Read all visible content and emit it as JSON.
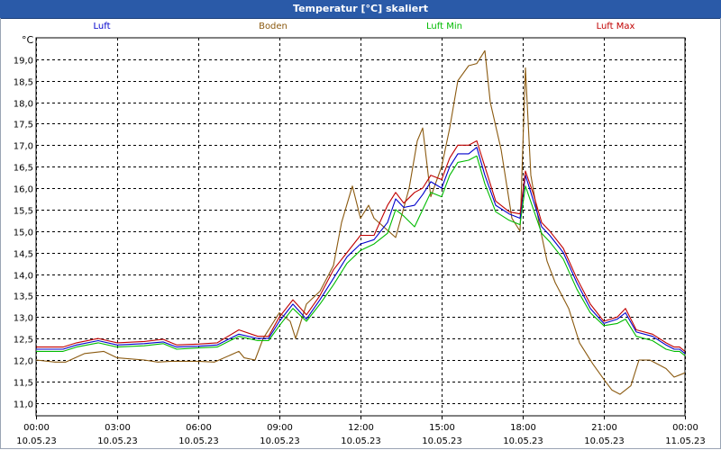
{
  "window": {
    "title": "Temperatur [°C] skaliert"
  },
  "chart_data": {
    "type": "line",
    "title": "Temperatur [°C] skaliert",
    "ylabel": "°C",
    "ylim": [
      10.7,
      19.5
    ],
    "xlim": [
      0,
      24
    ],
    "grid": true,
    "y_ticks": [
      11.0,
      11.5,
      12.0,
      12.5,
      13.0,
      13.5,
      14.0,
      14.5,
      15.0,
      15.5,
      16.0,
      16.5,
      17.0,
      17.5,
      18.0,
      18.5,
      19.0
    ],
    "y_tick_labels": [
      "11,0",
      "11,5",
      "12,0",
      "12,5",
      "13,0",
      "13,5",
      "14,0",
      "14,5",
      "15,0",
      "15,5",
      "16,0",
      "16,5",
      "17,0",
      "17,5",
      "18,0",
      "18,5",
      "19,0"
    ],
    "x_ticks": [
      0,
      3,
      6,
      9,
      12,
      15,
      18,
      21,
      24
    ],
    "x_tick_times": [
      "00:00",
      "03:00",
      "06:00",
      "09:00",
      "12:00",
      "15:00",
      "18:00",
      "21:00",
      "00:00"
    ],
    "x_tick_dates": [
      "10.05.23",
      "10.05.23",
      "10.05.23",
      "10.05.23",
      "10.05.23",
      "10.05.23",
      "10.05.23",
      "10.05.23",
      "11.05.23"
    ],
    "series": [
      {
        "name": "Luft",
        "color": "#0000cc",
        "points": [
          [
            0,
            12.25
          ],
          [
            1,
            12.25
          ],
          [
            1.5,
            12.35
          ],
          [
            2.3,
            12.45
          ],
          [
            3,
            12.35
          ],
          [
            4,
            12.38
          ],
          [
            4.7,
            12.42
          ],
          [
            5.2,
            12.3
          ],
          [
            6,
            12.32
          ],
          [
            6.7,
            12.35
          ],
          [
            7.5,
            12.6
          ],
          [
            8.2,
            12.5
          ],
          [
            8.6,
            12.5
          ],
          [
            9,
            12.9
          ],
          [
            9.5,
            13.3
          ],
          [
            10,
            12.95
          ],
          [
            10.5,
            13.4
          ],
          [
            11,
            13.9
          ],
          [
            11.5,
            14.4
          ],
          [
            12,
            14.7
          ],
          [
            12.5,
            14.8
          ],
          [
            13,
            15.2
          ],
          [
            13.3,
            15.75
          ],
          [
            13.6,
            15.55
          ],
          [
            14,
            15.6
          ],
          [
            14.3,
            15.85
          ],
          [
            14.6,
            16.15
          ],
          [
            15,
            16.0
          ],
          [
            15.3,
            16.5
          ],
          [
            15.6,
            16.8
          ],
          [
            16,
            16.8
          ],
          [
            16.3,
            16.95
          ],
          [
            16.6,
            16.3
          ],
          [
            17,
            15.6
          ],
          [
            17.5,
            15.4
          ],
          [
            17.9,
            15.3
          ],
          [
            18.1,
            16.3
          ],
          [
            18.4,
            15.7
          ],
          [
            18.7,
            15.1
          ],
          [
            19,
            14.9
          ],
          [
            19.5,
            14.5
          ],
          [
            20,
            13.8
          ],
          [
            20.5,
            13.2
          ],
          [
            21,
            12.85
          ],
          [
            21.5,
            12.95
          ],
          [
            21.8,
            13.1
          ],
          [
            22.2,
            12.65
          ],
          [
            22.8,
            12.55
          ],
          [
            23.3,
            12.35
          ],
          [
            23.6,
            12.25
          ],
          [
            23.8,
            12.25
          ],
          [
            24,
            12.15
          ]
        ]
      },
      {
        "name": "Boden",
        "color": "#8b5a10",
        "points": [
          [
            0,
            12.0
          ],
          [
            0.7,
            11.95
          ],
          [
            1.1,
            11.95
          ],
          [
            1.8,
            12.15
          ],
          [
            2.5,
            12.2
          ],
          [
            3,
            12.05
          ],
          [
            4,
            12.0
          ],
          [
            4.5,
            11.95
          ],
          [
            5,
            11.97
          ],
          [
            6,
            11.97
          ],
          [
            6.6,
            11.95
          ],
          [
            7.5,
            12.2
          ],
          [
            7.7,
            12.05
          ],
          [
            8.1,
            12.0
          ],
          [
            8.4,
            12.5
          ],
          [
            9,
            13.1
          ],
          [
            9.4,
            12.9
          ],
          [
            9.6,
            12.5
          ],
          [
            10,
            13.3
          ],
          [
            10.5,
            13.6
          ],
          [
            11,
            14.2
          ],
          [
            11.3,
            15.2
          ],
          [
            11.7,
            16.05
          ],
          [
            12,
            15.3
          ],
          [
            12.3,
            15.6
          ],
          [
            12.5,
            15.3
          ],
          [
            13.3,
            14.85
          ],
          [
            13.8,
            16.0
          ],
          [
            14.1,
            17.1
          ],
          [
            14.3,
            17.4
          ],
          [
            14.6,
            15.8
          ],
          [
            15,
            16.5
          ],
          [
            15.3,
            17.4
          ],
          [
            15.6,
            18.5
          ],
          [
            16,
            18.85
          ],
          [
            16.3,
            18.9
          ],
          [
            16.6,
            19.2
          ],
          [
            16.8,
            18.0
          ],
          [
            17.2,
            16.9
          ],
          [
            17.6,
            15.3
          ],
          [
            17.9,
            15.0
          ],
          [
            18.1,
            18.8
          ],
          [
            18.3,
            16.3
          ],
          [
            18.6,
            15.2
          ],
          [
            18.9,
            14.3
          ],
          [
            19.2,
            13.8
          ],
          [
            19.7,
            13.2
          ],
          [
            20.1,
            12.4
          ],
          [
            20.6,
            11.9
          ],
          [
            21,
            11.55
          ],
          [
            21.3,
            11.3
          ],
          [
            21.6,
            11.2
          ],
          [
            22,
            11.4
          ],
          [
            22.3,
            12.0
          ],
          [
            22.7,
            12.0
          ],
          [
            23.3,
            11.8
          ],
          [
            23.6,
            11.6
          ],
          [
            23.8,
            11.65
          ],
          [
            24,
            11.7
          ]
        ]
      },
      {
        "name": "Luft Min",
        "color": "#00bb00",
        "points": [
          [
            0,
            12.2
          ],
          [
            1,
            12.2
          ],
          [
            1.5,
            12.3
          ],
          [
            2.3,
            12.4
          ],
          [
            3,
            12.3
          ],
          [
            4,
            12.33
          ],
          [
            4.7,
            12.38
          ],
          [
            5.2,
            12.25
          ],
          [
            6,
            12.28
          ],
          [
            6.7,
            12.3
          ],
          [
            7.5,
            12.55
          ],
          [
            8.2,
            12.45
          ],
          [
            8.6,
            12.45
          ],
          [
            9,
            12.8
          ],
          [
            9.5,
            13.2
          ],
          [
            10,
            12.9
          ],
          [
            10.5,
            13.3
          ],
          [
            11,
            13.75
          ],
          [
            11.5,
            14.25
          ],
          [
            12,
            14.55
          ],
          [
            12.5,
            14.7
          ],
          [
            13,
            14.95
          ],
          [
            13.3,
            15.5
          ],
          [
            13.6,
            15.35
          ],
          [
            14,
            15.1
          ],
          [
            14.3,
            15.5
          ],
          [
            14.6,
            15.9
          ],
          [
            15,
            15.8
          ],
          [
            15.3,
            16.3
          ],
          [
            15.6,
            16.6
          ],
          [
            16,
            16.65
          ],
          [
            16.3,
            16.75
          ],
          [
            16.6,
            16.1
          ],
          [
            17,
            15.45
          ],
          [
            17.5,
            15.25
          ],
          [
            17.9,
            15.15
          ],
          [
            18.1,
            16.05
          ],
          [
            18.4,
            15.5
          ],
          [
            18.7,
            14.95
          ],
          [
            19,
            14.75
          ],
          [
            19.5,
            14.35
          ],
          [
            20,
            13.65
          ],
          [
            20.5,
            13.1
          ],
          [
            21,
            12.8
          ],
          [
            21.5,
            12.85
          ],
          [
            21.8,
            12.95
          ],
          [
            22.2,
            12.55
          ],
          [
            22.8,
            12.45
          ],
          [
            23.3,
            12.25
          ],
          [
            23.6,
            12.2
          ],
          [
            23.8,
            12.2
          ],
          [
            24,
            12.1
          ]
        ]
      },
      {
        "name": "Luft Max",
        "color": "#c00000",
        "points": [
          [
            0,
            12.3
          ],
          [
            1,
            12.3
          ],
          [
            1.5,
            12.4
          ],
          [
            2.3,
            12.5
          ],
          [
            3,
            12.4
          ],
          [
            4,
            12.43
          ],
          [
            4.7,
            12.48
          ],
          [
            5.2,
            12.35
          ],
          [
            6,
            12.37
          ],
          [
            6.7,
            12.4
          ],
          [
            7.5,
            12.7
          ],
          [
            8.2,
            12.55
          ],
          [
            8.6,
            12.55
          ],
          [
            9,
            13.0
          ],
          [
            9.5,
            13.4
          ],
          [
            10,
            13.05
          ],
          [
            10.5,
            13.5
          ],
          [
            11,
            14.1
          ],
          [
            11.5,
            14.5
          ],
          [
            12,
            14.9
          ],
          [
            12.5,
            14.9
          ],
          [
            13,
            15.6
          ],
          [
            13.3,
            15.9
          ],
          [
            13.6,
            15.65
          ],
          [
            14,
            15.9
          ],
          [
            14.3,
            16.0
          ],
          [
            14.6,
            16.3
          ],
          [
            15,
            16.2
          ],
          [
            15.3,
            16.7
          ],
          [
            15.6,
            17.0
          ],
          [
            16,
            17.0
          ],
          [
            16.3,
            17.1
          ],
          [
            16.6,
            16.5
          ],
          [
            17,
            15.7
          ],
          [
            17.5,
            15.45
          ],
          [
            17.9,
            15.4
          ],
          [
            18.1,
            16.4
          ],
          [
            18.4,
            15.85
          ],
          [
            18.7,
            15.2
          ],
          [
            19,
            15.0
          ],
          [
            19.5,
            14.6
          ],
          [
            20,
            13.9
          ],
          [
            20.5,
            13.3
          ],
          [
            21,
            12.9
          ],
          [
            21.5,
            13.0
          ],
          [
            21.8,
            13.2
          ],
          [
            22.2,
            12.7
          ],
          [
            22.8,
            12.6
          ],
          [
            23.3,
            12.4
          ],
          [
            23.6,
            12.3
          ],
          [
            23.8,
            12.3
          ],
          [
            24,
            12.2
          ]
        ]
      }
    ]
  }
}
